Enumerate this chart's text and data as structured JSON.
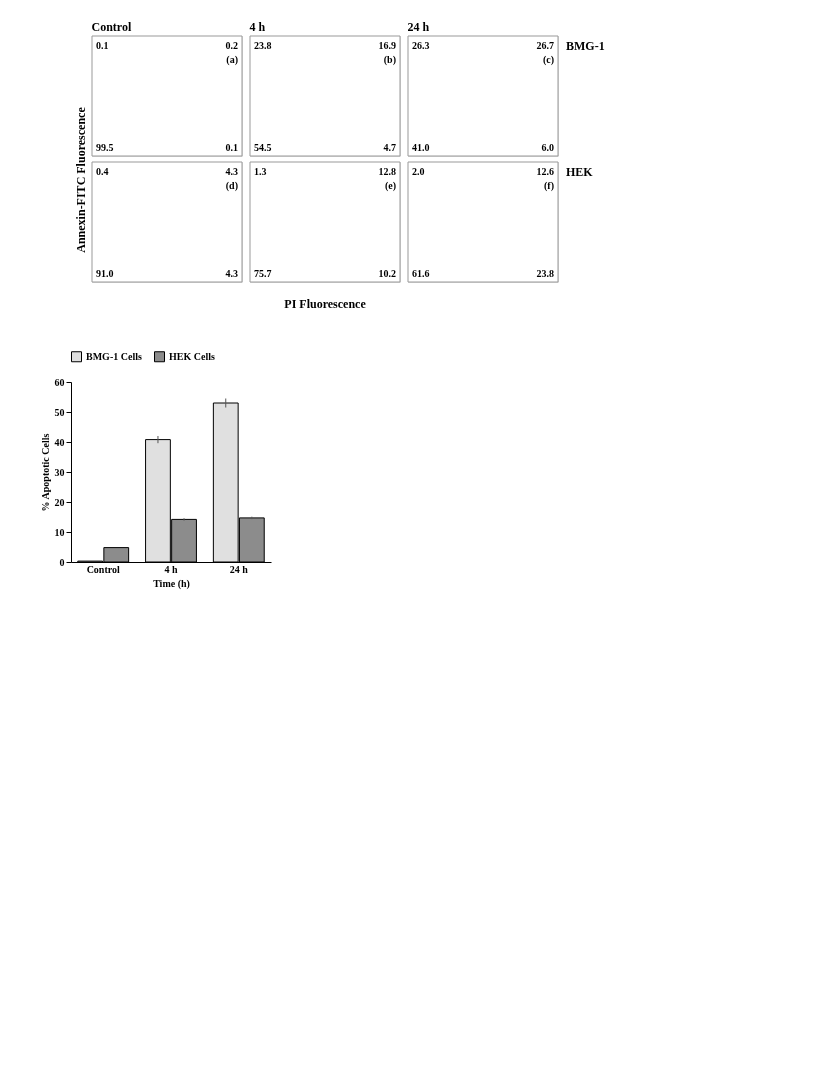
{
  "chart_data": [
    {
      "type": "other",
      "title": "Control",
      "annotations": [
        "0.1",
        "0.2",
        "99.5",
        "0.1",
        "(a)"
      ]
    },
    {
      "type": "other",
      "title": "4 h",
      "annotations": [
        "23.8",
        "16.9",
        "54.5",
        "4.7",
        "(b)"
      ]
    },
    {
      "type": "other",
      "title": "24 h",
      "y2label": "BMG-1",
      "annotations": [
        "26.3",
        "26.7",
        "41.0",
        "6.0",
        "(c)"
      ]
    },
    {
      "type": "other",
      "ylabel": "Annexin-FITC Fluorescence",
      "annotations": [
        "0.4",
        "4.3",
        "91.0",
        "4.3",
        "(d)"
      ]
    },
    {
      "type": "other",
      "xlabel": "PI Fluorescence",
      "annotations": [
        "1.3",
        "12.8",
        "75.7",
        "10.2",
        "(e)"
      ]
    },
    {
      "type": "other",
      "y2label": "HEK",
      "annotations": [
        "2.0",
        "12.6",
        "61.6",
        "23.8",
        "(f)"
      ]
    },
    {
      "type": "bar",
      "xlabel": "Time (h)",
      "ylabel": "% Apoptotic Cells",
      "categories": [
        "Control",
        "4 h",
        "24 h"
      ],
      "ylim": [
        0,
        60
      ],
      "yticks": [
        0,
        10,
        20,
        30,
        40,
        50,
        60
      ],
      "legend": "top",
      "grid": false,
      "series": [
        {
          "name": "BMG-1 Cells",
          "color": "#e0e0e0",
          "values": [
            0.3,
            40.8,
            53.0
          ],
          "errors": [
            null,
            1.2,
            1.5
          ]
        },
        {
          "name": "HEK Cells",
          "color": "#8c8c8c",
          "values": [
            4.8,
            14.2,
            14.7
          ],
          "errors": [
            null,
            0.4,
            0.4
          ]
        }
      ]
    }
  ]
}
